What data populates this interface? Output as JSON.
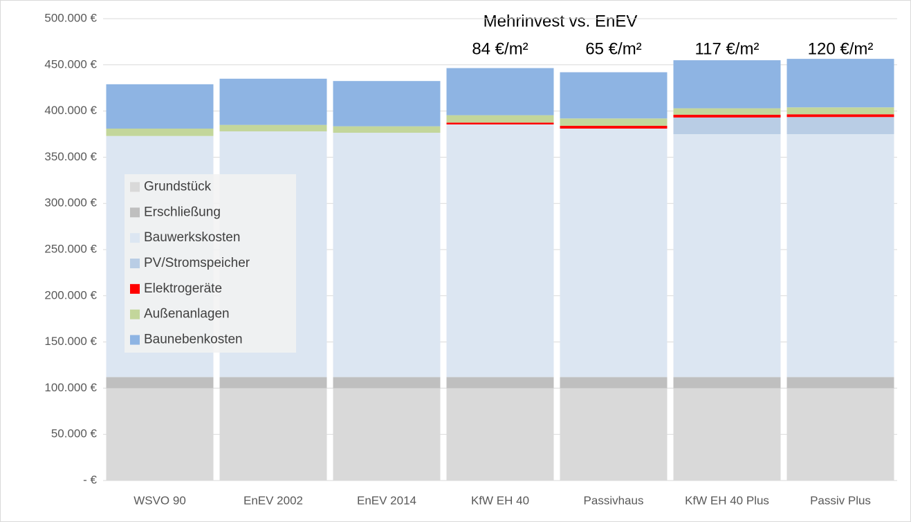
{
  "chart_data": {
    "type": "stacked_bar",
    "categories": [
      "WSVO 90",
      "EnEV 2002",
      "EnEV 2014",
      "KfW EH 40",
      "Passivhaus",
      "KfW EH 40 Plus",
      "Passiv Plus"
    ],
    "series": [
      {
        "name": "Grundstück",
        "color": "#d9d9d9",
        "values": [
          100000,
          100000,
          100000,
          100000,
          100000,
          100000,
          100000
        ]
      },
      {
        "name": "Erschließung",
        "color": "#bfbfbf",
        "values": [
          12000,
          12000,
          12000,
          12000,
          12000,
          12000,
          12000
        ]
      },
      {
        "name": "Bauwerkskosten",
        "color": "#dce6f2",
        "values": [
          261000,
          266000,
          264500,
          273500,
          269000,
          263000,
          263000
        ]
      },
      {
        "name": "PV/Stromspeicher",
        "color": "#b9cde5",
        "values": [
          0,
          0,
          0,
          0,
          0,
          18000,
          18500
        ]
      },
      {
        "name": "Elektrogeräte",
        "color": "#ff0000",
        "values": [
          0,
          0,
          0,
          2000,
          3000,
          3000,
          3000
        ]
      },
      {
        "name": "Außenanlagen",
        "color": "#c3d69b",
        "values": [
          8000,
          7000,
          7000,
          8000,
          8000,
          7000,
          7500
        ]
      },
      {
        "name": "Baunebenkosten",
        "color": "#8eb4e3",
        "values": [
          48000,
          50000,
          49000,
          51000,
          50000,
          52000,
          52500
        ]
      }
    ],
    "ylim": [
      0,
      500000
    ],
    "yticks": [
      {
        "value": 0,
        "label": "-   €"
      },
      {
        "value": 50000,
        "label": "50.000 €"
      },
      {
        "value": 100000,
        "label": "100.000 €"
      },
      {
        "value": 150000,
        "label": "150.000 €"
      },
      {
        "value": 200000,
        "label": "200.000 €"
      },
      {
        "value": 250000,
        "label": "250.000 €"
      },
      {
        "value": 300000,
        "label": "300.000 €"
      },
      {
        "value": 350000,
        "label": "350.000 €"
      },
      {
        "value": 400000,
        "label": "400.000 €"
      },
      {
        "value": 450000,
        "label": "450.000 €"
      },
      {
        "value": 500000,
        "label": "500.000 €"
      }
    ],
    "grid": true,
    "legend": "center left",
    "annotation_title": "Mehrinvest vs. EnEV",
    "annotations": [
      {
        "text": "84 €/m²",
        "category": "KfW EH 40"
      },
      {
        "text": "65 €/m²",
        "category": "Passivhaus"
      },
      {
        "text": "117 €/m²",
        "category": "KfW EH 40 Plus"
      },
      {
        "text": "120 €/m²",
        "category": "Passiv Plus"
      }
    ]
  }
}
